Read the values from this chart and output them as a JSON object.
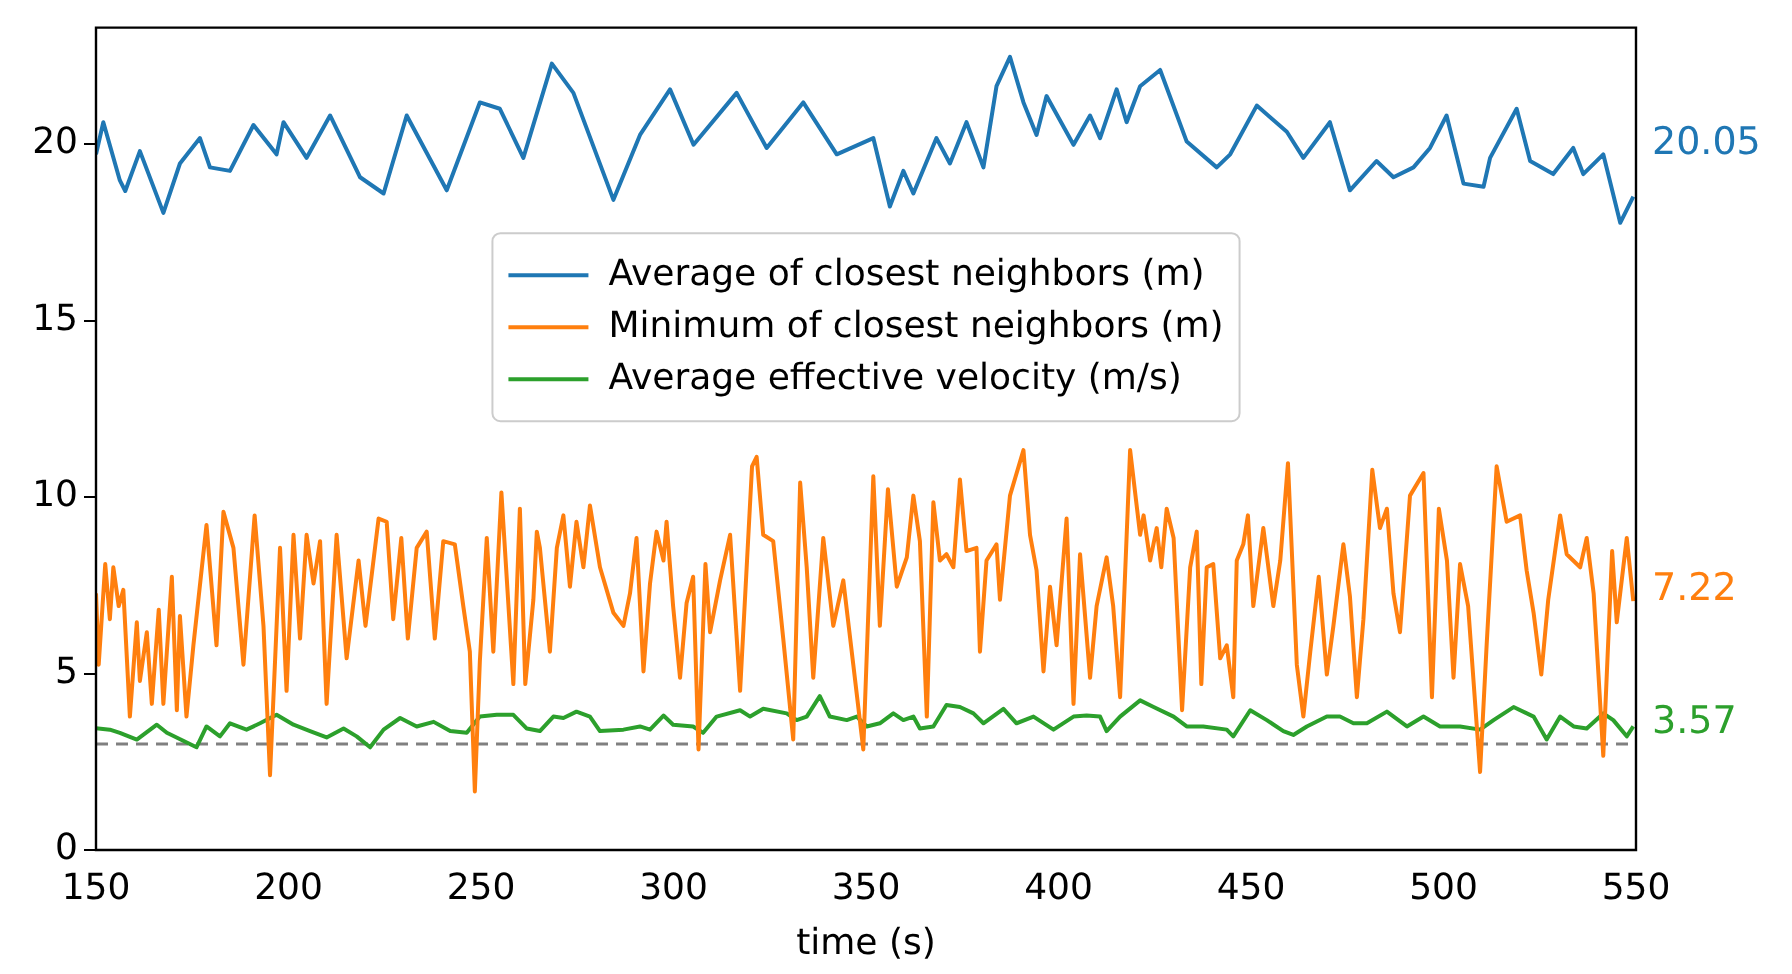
{
  "chart_data": {
    "type": "line",
    "xlabel": "time (s)",
    "xlim": [
      150,
      550
    ],
    "xticks": [
      150,
      200,
      250,
      300,
      350,
      400,
      450,
      500,
      550
    ],
    "ylim": [
      0,
      23.3
    ],
    "yticks": [
      0,
      5,
      10,
      15,
      20
    ],
    "grid": false,
    "legend": "top",
    "marker": "none",
    "line_style": "solid",
    "ref_lines": [
      {
        "axis": "y",
        "value": 3,
        "color": "#808080",
        "line_style": "dashed"
      }
    ],
    "annotations": [
      "20.05",
      "7.22",
      "3.57"
    ],
    "series": [
      {
        "name": "Average of closest neighbors (m)",
        "color": "#1f77b4",
        "x": [
          150,
          151.9,
          156.2,
          157.6,
          161.4,
          167.5,
          171.8,
          177.0,
          179.6,
          184.8,
          190.9,
          196.9,
          198.7,
          204.7,
          210.8,
          218.6,
          224.7,
          230.7,
          241.1,
          249.7,
          254.9,
          261.0,
          268.4,
          274.0,
          284.4,
          291.3,
          299.1,
          305.2,
          316.4,
          324.2,
          333.7,
          342.4,
          351.9,
          356.2,
          359.7,
          362.3,
          368.3,
          371.8,
          376.1,
          380.5,
          383.9,
          387.4,
          390.9,
          394.3,
          396.9,
          403.9,
          408.2,
          410.8,
          415.1,
          417.7,
          421.2,
          426.4,
          433.3,
          441.1,
          444.6,
          451.5,
          459.3,
          463.6,
          470.5,
          475.7,
          482.6,
          487.0,
          492.2,
          496.5,
          500.8,
          505.2,
          510.4,
          512.1,
          519.0,
          522.5,
          528.5,
          533.7,
          536.3,
          541.5,
          545.9,
          549.3
        ],
        "values": [
          19.71,
          20.62,
          18.97,
          18.67,
          19.8,
          18.05,
          19.45,
          20.17,
          19.34,
          19.24,
          20.54,
          19.71,
          20.62,
          19.61,
          20.81,
          19.06,
          18.6,
          20.81,
          18.69,
          21.18,
          21.0,
          19.61,
          22.28,
          21.45,
          18.42,
          20.26,
          21.55,
          19.98,
          21.45,
          19.89,
          21.18,
          19.71,
          20.17,
          18.23,
          19.24,
          18.6,
          20.17,
          19.45,
          20.62,
          19.34,
          21.64,
          22.47,
          21.18,
          20.26,
          21.36,
          19.98,
          20.81,
          20.17,
          21.55,
          20.62,
          21.64,
          22.1,
          20.07,
          19.34,
          19.71,
          21.09,
          20.35,
          19.61,
          20.62,
          18.69,
          19.52,
          19.06,
          19.34,
          19.89,
          20.81,
          18.88,
          18.79,
          19.61,
          21.0,
          19.52,
          19.15,
          19.89,
          19.15,
          19.71,
          17.77,
          18.51
        ]
      },
      {
        "name": "Minimum of closest neighbors (m)",
        "color": "#ff7f0e",
        "x": [
          150,
          150.7,
          152.4,
          153.6,
          154.5,
          155.9,
          157.1,
          158.8,
          160.6,
          161.4,
          163.2,
          164.5,
          166.3,
          167.5,
          169.7,
          171.0,
          171.8,
          173.5,
          175.3,
          178.7,
          181.3,
          183.1,
          185.7,
          188.3,
          191.2,
          193.5,
          195.2,
          197.8,
          199.5,
          201.3,
          203.0,
          204.7,
          206.5,
          208.2,
          209.9,
          212.5,
          215.1,
          218.2,
          220.0,
          223.4,
          225.5,
          227.2,
          229.3,
          231.0,
          233.3,
          235.9,
          238.0,
          240.2,
          243.2,
          245.4,
          247.1,
          248.4,
          249.7,
          251.5,
          253.2,
          255.3,
          258.4,
          260.1,
          261.5,
          263.6,
          264.5,
          265.3,
          267.9,
          269.7,
          271.4,
          273.1,
          274.8,
          276.6,
          278.3,
          280.9,
          284.4,
          287.0,
          288.7,
          290.4,
          292.2,
          293.9,
          295.6,
          297.4,
          298.2,
          299.9,
          301.7,
          303.4,
          305.1,
          306.5,
          308.3,
          309.5,
          312.1,
          314.7,
          317.3,
          320.4,
          321.6,
          323.3,
          325.9,
          328.5,
          331.1,
          332.9,
          334.6,
          336.3,
          338.9,
          341.5,
          344.1,
          346.7,
          349.3,
          351.9,
          353.6,
          355.7,
          358.0,
          360.6,
          362.3,
          364.0,
          365.8,
          367.5,
          369.2,
          370.9,
          372.7,
          374.4,
          376.1,
          378.7,
          379.6,
          381.3,
          383.9,
          384.8,
          387.4,
          390.9,
          392.6,
          394.3,
          396.1,
          397.8,
          399.5,
          402.1,
          403.9,
          405.6,
          408.2,
          409.9,
          412.5,
          414.2,
          416.0,
          418.6,
          421.2,
          422.1,
          423.8,
          425.5,
          426.7,
          428.1,
          429.9,
          432.1,
          434.2,
          435.9,
          437.1,
          438.5,
          440.2,
          442.0,
          443.7,
          445.4,
          446.3,
          448.0,
          449.2,
          450.6,
          453.2,
          455.8,
          457.6,
          459.6,
          461.9,
          463.6,
          465.4,
          467.6,
          469.7,
          471.4,
          474.0,
          475.7,
          477.5,
          479.2,
          481.5,
          483.5,
          485.3,
          487.0,
          488.7,
          491.3,
          494.8,
          497.0,
          498.8,
          500.9,
          502.6,
          504.3,
          506.4,
          509.5,
          511.2,
          513.8,
          516.4,
          519.9,
          521.6,
          523.4,
          525.4,
          527.2,
          530.3,
          532.0,
          535.5,
          537.2,
          539.0,
          541.5,
          543.8,
          545.0,
          547.6,
          549.3
        ],
        "values": [
          7.27,
          5.25,
          8.1,
          6.54,
          8.01,
          6.91,
          7.37,
          3.78,
          6.45,
          4.79,
          6.17,
          4.14,
          6.81,
          4.14,
          7.74,
          3.96,
          6.63,
          3.78,
          5.8,
          9.21,
          5.8,
          9.58,
          8.56,
          5.25,
          9.48,
          6.35,
          2.12,
          8.56,
          4.51,
          8.93,
          5.99,
          8.93,
          7.55,
          8.75,
          4.14,
          8.93,
          5.43,
          8.2,
          6.35,
          9.39,
          9.3,
          6.54,
          8.84,
          5.99,
          8.56,
          9.02,
          5.99,
          8.75,
          8.66,
          6.91,
          5.62,
          1.66,
          5.34,
          8.84,
          5.62,
          10.13,
          4.7,
          9.67,
          4.7,
          7.09,
          9.02,
          8.56,
          5.62,
          8.56,
          9.48,
          7.46,
          9.3,
          8.01,
          9.76,
          8.01,
          6.72,
          6.35,
          7.27,
          8.84,
          5.06,
          7.55,
          9.02,
          8.2,
          9.3,
          6.91,
          4.88,
          7.0,
          7.74,
          2.85,
          8.1,
          6.17,
          7.64,
          8.93,
          4.51,
          10.87,
          11.14,
          8.93,
          8.75,
          5.99,
          3.13,
          10.41,
          8.01,
          4.88,
          8.84,
          6.35,
          7.64,
          5.25,
          2.85,
          10.59,
          6.35,
          10.22,
          7.46,
          8.29,
          10.04,
          8.75,
          3.78,
          9.85,
          8.2,
          8.38,
          8.01,
          10.5,
          8.47,
          8.56,
          5.62,
          8.2,
          8.66,
          7.09,
          10.04,
          11.33,
          8.93,
          7.92,
          5.06,
          7.46,
          5.8,
          9.39,
          4.14,
          8.38,
          4.88,
          6.91,
          8.29,
          6.91,
          4.33,
          11.33,
          8.93,
          9.48,
          8.2,
          9.12,
          8.01,
          9.67,
          8.84,
          3.96,
          8.01,
          9.02,
          4.7,
          8.01,
          8.1,
          5.43,
          5.8,
          4.33,
          8.2,
          8.66,
          9.48,
          6.91,
          9.12,
          6.91,
          8.2,
          10.96,
          5.25,
          3.78,
          5.62,
          7.74,
          4.97,
          6.35,
          8.66,
          7.18,
          4.33,
          6.54,
          10.77,
          9.12,
          9.67,
          7.27,
          6.17,
          10.04,
          10.68,
          4.33,
          9.67,
          8.2,
          4.88,
          8.1,
          6.91,
          2.21,
          5.8,
          10.87,
          9.3,
          9.48,
          7.92,
          6.72,
          4.97,
          7.09,
          9.48,
          8.38,
          8.01,
          8.84,
          7.27,
          2.67,
          8.47,
          6.45,
          8.84,
          7.05
        ]
      },
      {
        "name": "Average effective velocity (m/s)",
        "color": "#2ca02c",
        "x": [
          150,
          153.6,
          156.2,
          160.6,
          165.8,
          168.4,
          176.1,
          178.7,
          182.2,
          184.8,
          189.1,
          192.6,
          196.9,
          201.3,
          205.6,
          209.9,
          214.3,
          217.7,
          221.2,
          224.7,
          229.0,
          233.3,
          237.7,
          242.0,
          246.3,
          249.7,
          254.1,
          258.4,
          261.9,
          265.3,
          268.8,
          271.4,
          274.8,
          278.3,
          280.9,
          287.0,
          291.3,
          293.9,
          297.4,
          299.9,
          305.1,
          307.7,
          311.2,
          317.3,
          319.9,
          323.3,
          329.4,
          332.0,
          334.6,
          338.0,
          340.6,
          345.0,
          347.6,
          350.2,
          353.6,
          357.1,
          359.7,
          362.3,
          364.0,
          367.5,
          370.9,
          374.4,
          377.9,
          380.5,
          385.7,
          389.1,
          393.5,
          398.7,
          403.9,
          407.3,
          410.8,
          412.5,
          416.0,
          421.2,
          424.7,
          429.9,
          433.3,
          437.6,
          443.7,
          445.4,
          449.8,
          454.1,
          458.4,
          461.0,
          464.5,
          469.7,
          473.1,
          476.6,
          480.1,
          485.3,
          490.5,
          494.8,
          499.1,
          504.3,
          509.5,
          513.0,
          518.2,
          523.4,
          526.8,
          530.3,
          533.8,
          537.2,
          541.5,
          544.1,
          547.6,
          549.3
        ],
        "values": [
          3.45,
          3.41,
          3.32,
          3.13,
          3.55,
          3.32,
          2.91,
          3.5,
          3.22,
          3.59,
          3.41,
          3.59,
          3.83,
          3.55,
          3.37,
          3.19,
          3.44,
          3.22,
          2.91,
          3.41,
          3.74,
          3.5,
          3.63,
          3.37,
          3.32,
          3.78,
          3.83,
          3.83,
          3.44,
          3.37,
          3.78,
          3.74,
          3.92,
          3.78,
          3.37,
          3.41,
          3.5,
          3.41,
          3.81,
          3.55,
          3.5,
          3.32,
          3.78,
          3.96,
          3.78,
          4.0,
          3.87,
          3.68,
          3.78,
          4.36,
          3.78,
          3.68,
          3.78,
          3.5,
          3.59,
          3.87,
          3.68,
          3.78,
          3.44,
          3.5,
          4.11,
          4.05,
          3.87,
          3.59,
          4.0,
          3.59,
          3.78,
          3.41,
          3.78,
          3.81,
          3.78,
          3.37,
          3.78,
          4.24,
          4.05,
          3.78,
          3.5,
          3.5,
          3.41,
          3.22,
          3.96,
          3.68,
          3.37,
          3.26,
          3.5,
          3.78,
          3.78,
          3.59,
          3.59,
          3.92,
          3.5,
          3.78,
          3.5,
          3.5,
          3.41,
          3.68,
          4.05,
          3.78,
          3.13,
          3.78,
          3.5,
          3.44,
          3.87,
          3.68,
          3.22,
          3.5
        ]
      }
    ]
  }
}
